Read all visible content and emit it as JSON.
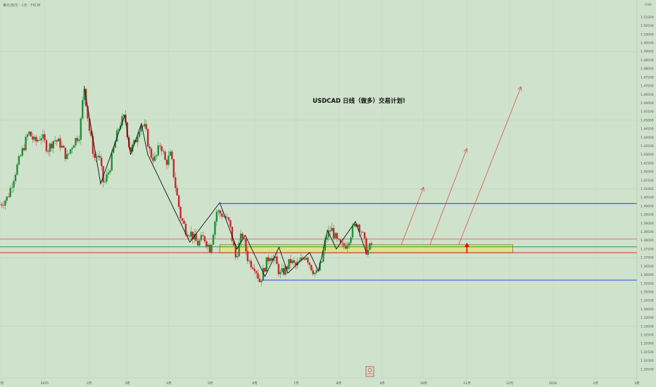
{
  "header": {
    "symbol": "美元/加元 · 1天 · FXCM",
    "currency": "CAD"
  },
  "chart_data": {
    "type": "candlestick",
    "title": "USDCAD  日线（做多）交易计划!",
    "ylim": [
      1.3,
      1.52
    ],
    "y_ticks": [
      1.51,
      1.505,
      1.5,
      1.495,
      1.49,
      1.485,
      1.48,
      1.475,
      1.47,
      1.465,
      1.46,
      1.455,
      1.45,
      1.445,
      1.44,
      1.435,
      1.43,
      1.425,
      1.42,
      1.415,
      1.41,
      1.405,
      1.4,
      1.395,
      1.39,
      1.385,
      1.38,
      1.375,
      1.37,
      1.365,
      1.36,
      1.355,
      1.35,
      1.345,
      1.34,
      1.335,
      1.33,
      1.325,
      1.32,
      1.315,
      1.31,
      1.305
    ],
    "x_ticks": [
      {
        "label": "12月",
        "pos": 0.0
      },
      {
        "label": "2025",
        "pos": 0.07
      },
      {
        "label": "2月",
        "pos": 0.14
      },
      {
        "label": "3月",
        "pos": 0.2
      },
      {
        "label": "4月",
        "pos": 0.265
      },
      {
        "label": "5月",
        "pos": 0.33
      },
      {
        "label": "6月",
        "pos": 0.4
      },
      {
        "label": "7月",
        "pos": 0.465
      },
      {
        "label": "8月",
        "pos": 0.532
      },
      {
        "label": "9月",
        "pos": 0.6
      },
      {
        "label": "10月",
        "pos": 0.665
      },
      {
        "label": "11月",
        "pos": 0.733
      },
      {
        "label": "12月",
        "pos": 0.8
      },
      {
        "label": "2026",
        "pos": 0.868
      },
      {
        "label": "2月",
        "pos": 0.935
      },
      {
        "label": "3月",
        "pos": 1.0
      }
    ],
    "price_path": [
      [
        0.0,
        1.401
      ],
      [
        0.012,
        1.405
      ],
      [
        0.025,
        1.421
      ],
      [
        0.035,
        1.432
      ],
      [
        0.045,
        1.443
      ],
      [
        0.055,
        1.437
      ],
      [
        0.065,
        1.441
      ],
      [
        0.075,
        1.433
      ],
      [
        0.085,
        1.439
      ],
      [
        0.095,
        1.436
      ],
      [
        0.105,
        1.428
      ],
      [
        0.115,
        1.437
      ],
      [
        0.125,
        1.442
      ],
      [
        0.132,
        1.47
      ],
      [
        0.14,
        1.445
      ],
      [
        0.148,
        1.428
      ],
      [
        0.155,
        1.43
      ],
      [
        0.163,
        1.412
      ],
      [
        0.172,
        1.422
      ],
      [
        0.18,
        1.436
      ],
      [
        0.188,
        1.448
      ],
      [
        0.196,
        1.452
      ],
      [
        0.204,
        1.432
      ],
      [
        0.212,
        1.437
      ],
      [
        0.22,
        1.448
      ],
      [
        0.228,
        1.445
      ],
      [
        0.236,
        1.43
      ],
      [
        0.244,
        1.427
      ],
      [
        0.252,
        1.437
      ],
      [
        0.26,
        1.425
      ],
      [
        0.268,
        1.43
      ],
      [
        0.276,
        1.41
      ],
      [
        0.284,
        1.393
      ],
      [
        0.292,
        1.386
      ],
      [
        0.3,
        1.384
      ],
      [
        0.31,
        1.378
      ],
      [
        0.32,
        1.382
      ],
      [
        0.33,
        1.375
      ],
      [
        0.34,
        1.397
      ],
      [
        0.35,
        1.395
      ],
      [
        0.36,
        1.39
      ],
      [
        0.37,
        1.37
      ],
      [
        0.38,
        1.384
      ],
      [
        0.39,
        1.368
      ],
      [
        0.4,
        1.365
      ],
      [
        0.408,
        1.356
      ],
      [
        0.416,
        1.365
      ],
      [
        0.424,
        1.372
      ],
      [
        0.432,
        1.368
      ],
      [
        0.44,
        1.36
      ],
      [
        0.448,
        1.363
      ],
      [
        0.456,
        1.368
      ],
      [
        0.464,
        1.365
      ],
      [
        0.472,
        1.368
      ],
      [
        0.48,
        1.372
      ],
      [
        0.488,
        1.365
      ],
      [
        0.496,
        1.36
      ],
      [
        0.504,
        1.366
      ],
      [
        0.512,
        1.382
      ],
      [
        0.52,
        1.387
      ],
      [
        0.528,
        1.38
      ],
      [
        0.536,
        1.376
      ],
      [
        0.544,
        1.378
      ],
      [
        0.552,
        1.385
      ],
      [
        0.56,
        1.391
      ],
      [
        0.568,
        1.385
      ],
      [
        0.576,
        1.373
      ],
      [
        0.584,
        1.378
      ]
    ],
    "zigzag": [
      [
        0.132,
        1.47
      ],
      [
        0.158,
        1.413
      ],
      [
        0.196,
        1.453
      ],
      [
        0.205,
        1.43
      ],
      [
        0.222,
        1.448
      ],
      [
        0.232,
        1.43
      ],
      [
        0.298,
        1.379
      ],
      [
        0.345,
        1.402
      ],
      [
        0.372,
        1.375
      ],
      [
        0.385,
        1.383
      ],
      [
        0.416,
        1.359
      ],
      [
        0.438,
        1.376
      ],
      [
        0.452,
        1.361
      ],
      [
        0.486,
        1.373
      ],
      [
        0.5,
        1.362
      ],
      [
        0.514,
        1.386
      ],
      [
        0.528,
        1.375
      ],
      [
        0.558,
        1.391
      ],
      [
        0.575,
        1.373
      ]
    ],
    "hlines": [
      {
        "y": 1.4015,
        "x0": 0.345,
        "color": "#2233ee",
        "label": "1.40153"
      },
      {
        "y": 1.3808,
        "x0": 0.0,
        "color": "#e06060",
        "label": "1.38083"
      },
      {
        "y": 1.3763,
        "x0": 0.0,
        "color": "#2a9b34",
        "label": "1.37625"
      },
      {
        "y": 1.3729,
        "x0": 0.0,
        "color": "#dd1111",
        "label": "1.37286"
      },
      {
        "y": 1.3569,
        "x0": 0.41,
        "color": "#2233ee",
        "label": "1.35688"
      }
    ],
    "zone": {
      "x0": 0.345,
      "x1": 0.805,
      "y_top": 1.3775,
      "y_bottom": 1.3728
    },
    "projections": [
      [
        [
          0.63,
          1.3775
        ],
        [
          0.665,
          1.411
        ]
      ],
      [
        [
          0.675,
          1.3775
        ],
        [
          0.733,
          1.4335
        ]
      ],
      [
        [
          0.72,
          1.3775
        ],
        [
          0.818,
          1.4695
        ]
      ]
    ],
    "up_arrow": {
      "x": 0.733,
      "y_from": 1.3735,
      "y_to": 1.3775
    }
  }
}
